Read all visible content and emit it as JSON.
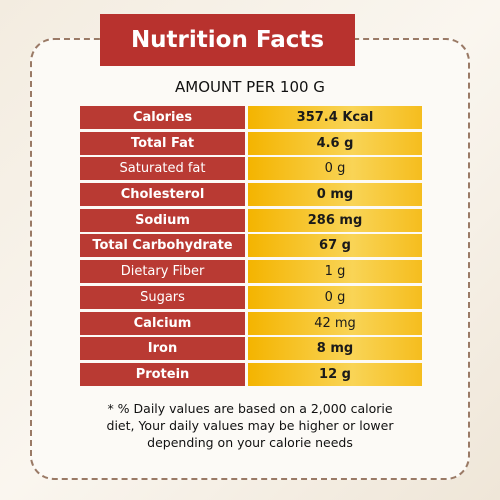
{
  "header": {
    "title": "Nutrition Facts",
    "subtitle": "AMOUNT PER 100 G"
  },
  "table": {
    "rows": [
      [
        "Calories",
        "357.4 Kcal"
      ],
      [
        "Total Fat",
        "4.6 g"
      ],
      [
        "Saturated fat",
        "0 g"
      ],
      [
        "Cholesterol",
        "0 mg"
      ],
      [
        "Sodium",
        "286 mg"
      ],
      [
        "Total Carbohydrate",
        "67 g"
      ],
      [
        "Dietary Fiber",
        "1 g"
      ],
      [
        "Sugars",
        "0 g"
      ],
      [
        "Calcium",
        "42 mg"
      ],
      [
        "Iron",
        "8 mg"
      ],
      [
        "Protein",
        "12 g"
      ]
    ]
  },
  "footnote": [
    "* % Daily values are based on a 2,000 calorie",
    "diet, Your daily values may be higher or lower",
    "depending  on your calorie needs"
  ]
}
